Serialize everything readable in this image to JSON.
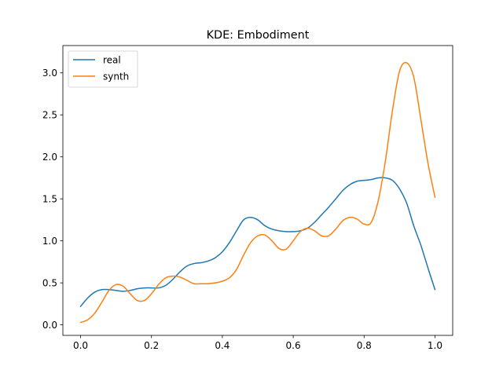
{
  "chart_data": {
    "type": "line",
    "title": "KDE: Embodiment",
    "xlabel": "",
    "ylabel": "",
    "xlim": [
      -0.05,
      1.05
    ],
    "ylim": [
      -0.125,
      3.325
    ],
    "xticks": [
      0.0,
      0.2,
      0.4,
      0.6,
      0.8,
      1.0
    ],
    "xtick_labels": [
      "0.0",
      "0.2",
      "0.4",
      "0.6",
      "0.8",
      "1.0"
    ],
    "yticks": [
      0.0,
      0.5,
      1.0,
      1.5,
      2.0,
      2.5,
      3.0
    ],
    "ytick_labels": [
      "0.0",
      "0.5",
      "1.0",
      "1.5",
      "2.0",
      "2.5",
      "3.0"
    ],
    "grid": false,
    "legend_position": "upper-left",
    "series": [
      {
        "name": "real",
        "color": "#1f77b4",
        "x": [
          0.0,
          0.02,
          0.04,
          0.06,
          0.08,
          0.1,
          0.12,
          0.14,
          0.16,
          0.18,
          0.2,
          0.22,
          0.24,
          0.26,
          0.28,
          0.3,
          0.32,
          0.34,
          0.36,
          0.38,
          0.4,
          0.42,
          0.44,
          0.46,
          0.48,
          0.5,
          0.52,
          0.54,
          0.56,
          0.58,
          0.6,
          0.62,
          0.64,
          0.66,
          0.68,
          0.7,
          0.72,
          0.74,
          0.76,
          0.78,
          0.8,
          0.82,
          0.84,
          0.86,
          0.88,
          0.9,
          0.92,
          0.94,
          0.96,
          0.98,
          1.0
        ],
        "y": [
          0.22,
          0.32,
          0.39,
          0.42,
          0.42,
          0.41,
          0.4,
          0.41,
          0.43,
          0.44,
          0.44,
          0.44,
          0.47,
          0.54,
          0.63,
          0.7,
          0.73,
          0.74,
          0.76,
          0.8,
          0.87,
          0.98,
          1.12,
          1.25,
          1.28,
          1.25,
          1.18,
          1.14,
          1.12,
          1.11,
          1.11,
          1.12,
          1.15,
          1.22,
          1.31,
          1.4,
          1.5,
          1.6,
          1.67,
          1.71,
          1.72,
          1.73,
          1.75,
          1.75,
          1.72,
          1.62,
          1.45,
          1.18,
          0.95,
          0.68,
          0.42
        ]
      },
      {
        "name": "synth",
        "color": "#ff7f0e",
        "x": [
          0.0,
          0.02,
          0.04,
          0.06,
          0.08,
          0.1,
          0.12,
          0.14,
          0.16,
          0.18,
          0.2,
          0.22,
          0.24,
          0.26,
          0.28,
          0.3,
          0.32,
          0.34,
          0.36,
          0.38,
          0.4,
          0.42,
          0.44,
          0.46,
          0.48,
          0.5,
          0.52,
          0.54,
          0.56,
          0.58,
          0.6,
          0.62,
          0.64,
          0.66,
          0.68,
          0.7,
          0.72,
          0.74,
          0.76,
          0.78,
          0.8,
          0.82,
          0.84,
          0.86,
          0.88,
          0.9,
          0.92,
          0.94,
          0.96,
          0.98,
          1.0
        ],
        "y": [
          0.03,
          0.06,
          0.14,
          0.27,
          0.41,
          0.48,
          0.46,
          0.37,
          0.29,
          0.29,
          0.37,
          0.48,
          0.56,
          0.58,
          0.57,
          0.53,
          0.49,
          0.49,
          0.49,
          0.5,
          0.52,
          0.56,
          0.66,
          0.83,
          0.98,
          1.06,
          1.07,
          1.0,
          0.91,
          0.9,
          1.0,
          1.11,
          1.15,
          1.12,
          1.06,
          1.06,
          1.14,
          1.24,
          1.28,
          1.26,
          1.2,
          1.22,
          1.48,
          1.95,
          2.55,
          3.02,
          3.12,
          2.95,
          2.45,
          1.93,
          1.52
        ]
      }
    ]
  }
}
